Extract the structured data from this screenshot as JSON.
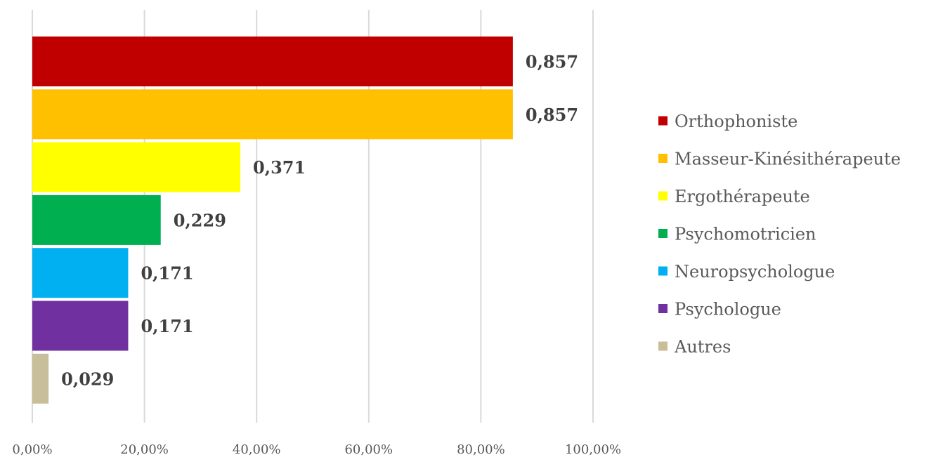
{
  "chart_data": {
    "type": "bar",
    "orientation": "horizontal",
    "categories": [
      "Orthophoniste",
      "Masseur-Kinésithérapeute",
      "Ergothérapeute",
      "Psychomotricien",
      "Neuropsychologue",
      "Psychologue",
      "Autres"
    ],
    "values": [
      0.857,
      0.857,
      0.371,
      0.229,
      0.171,
      0.171,
      0.029
    ],
    "data_labels": [
      "0,857",
      "0,857",
      "0,371",
      "0,229",
      "0,171",
      "0,171",
      "0,029"
    ],
    "colors": [
      "#C00000",
      "#FFC000",
      "#FFFF00",
      "#00B050",
      "#00B0F0",
      "#7030A0",
      "#C9BE9A"
    ],
    "x_ticks": [
      0,
      0.2,
      0.4,
      0.6,
      0.8,
      1.0
    ],
    "x_tick_labels": [
      "0,00%",
      "20,00%",
      "40,00%",
      "60,00%",
      "80,00%",
      "100,00%"
    ],
    "xlim": [
      0,
      1.0
    ],
    "title": "",
    "xlabel": "",
    "ylabel": "",
    "grid": "vertical",
    "legend_position": "right",
    "gridline_color": "#D9D9D9"
  }
}
